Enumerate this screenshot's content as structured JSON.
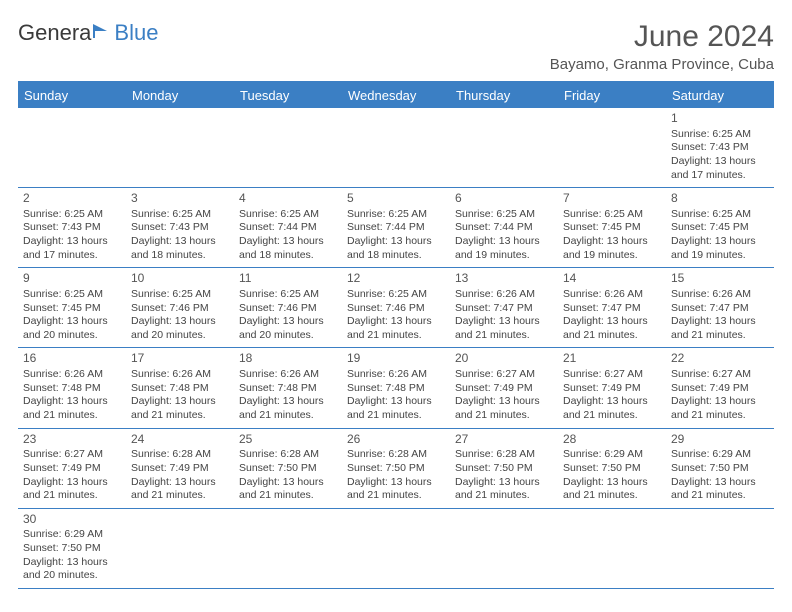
{
  "logo": {
    "text_a": "Genera",
    "text_b": "Blue"
  },
  "title": "June 2024",
  "location": "Bayamo, Granma Province, Cuba",
  "colors": {
    "brand": "#3b7fc4",
    "text": "#444444",
    "heading": "#555555"
  },
  "weekdays": [
    "Sunday",
    "Monday",
    "Tuesday",
    "Wednesday",
    "Thursday",
    "Friday",
    "Saturday"
  ],
  "weeks": [
    [
      null,
      null,
      null,
      null,
      null,
      null,
      {
        "d": "1",
        "sr": "6:25 AM",
        "ss": "7:43 PM",
        "dl": "13 hours",
        "dl2": "and 17 minutes."
      }
    ],
    [
      {
        "d": "2",
        "sr": "6:25 AM",
        "ss": "7:43 PM",
        "dl": "13 hours",
        "dl2": "and 17 minutes."
      },
      {
        "d": "3",
        "sr": "6:25 AM",
        "ss": "7:43 PM",
        "dl": "13 hours",
        "dl2": "and 18 minutes."
      },
      {
        "d": "4",
        "sr": "6:25 AM",
        "ss": "7:44 PM",
        "dl": "13 hours",
        "dl2": "and 18 minutes."
      },
      {
        "d": "5",
        "sr": "6:25 AM",
        "ss": "7:44 PM",
        "dl": "13 hours",
        "dl2": "and 18 minutes."
      },
      {
        "d": "6",
        "sr": "6:25 AM",
        "ss": "7:44 PM",
        "dl": "13 hours",
        "dl2": "and 19 minutes."
      },
      {
        "d": "7",
        "sr": "6:25 AM",
        "ss": "7:45 PM",
        "dl": "13 hours",
        "dl2": "and 19 minutes."
      },
      {
        "d": "8",
        "sr": "6:25 AM",
        "ss": "7:45 PM",
        "dl": "13 hours",
        "dl2": "and 19 minutes."
      }
    ],
    [
      {
        "d": "9",
        "sr": "6:25 AM",
        "ss": "7:45 PM",
        "dl": "13 hours",
        "dl2": "and 20 minutes."
      },
      {
        "d": "10",
        "sr": "6:25 AM",
        "ss": "7:46 PM",
        "dl": "13 hours",
        "dl2": "and 20 minutes."
      },
      {
        "d": "11",
        "sr": "6:25 AM",
        "ss": "7:46 PM",
        "dl": "13 hours",
        "dl2": "and 20 minutes."
      },
      {
        "d": "12",
        "sr": "6:25 AM",
        "ss": "7:46 PM",
        "dl": "13 hours",
        "dl2": "and 21 minutes."
      },
      {
        "d": "13",
        "sr": "6:26 AM",
        "ss": "7:47 PM",
        "dl": "13 hours",
        "dl2": "and 21 minutes."
      },
      {
        "d": "14",
        "sr": "6:26 AM",
        "ss": "7:47 PM",
        "dl": "13 hours",
        "dl2": "and 21 minutes."
      },
      {
        "d": "15",
        "sr": "6:26 AM",
        "ss": "7:47 PM",
        "dl": "13 hours",
        "dl2": "and 21 minutes."
      }
    ],
    [
      {
        "d": "16",
        "sr": "6:26 AM",
        "ss": "7:48 PM",
        "dl": "13 hours",
        "dl2": "and 21 minutes."
      },
      {
        "d": "17",
        "sr": "6:26 AM",
        "ss": "7:48 PM",
        "dl": "13 hours",
        "dl2": "and 21 minutes."
      },
      {
        "d": "18",
        "sr": "6:26 AM",
        "ss": "7:48 PM",
        "dl": "13 hours",
        "dl2": "and 21 minutes."
      },
      {
        "d": "19",
        "sr": "6:26 AM",
        "ss": "7:48 PM",
        "dl": "13 hours",
        "dl2": "and 21 minutes."
      },
      {
        "d": "20",
        "sr": "6:27 AM",
        "ss": "7:49 PM",
        "dl": "13 hours",
        "dl2": "and 21 minutes."
      },
      {
        "d": "21",
        "sr": "6:27 AM",
        "ss": "7:49 PM",
        "dl": "13 hours",
        "dl2": "and 21 minutes."
      },
      {
        "d": "22",
        "sr": "6:27 AM",
        "ss": "7:49 PM",
        "dl": "13 hours",
        "dl2": "and 21 minutes."
      }
    ],
    [
      {
        "d": "23",
        "sr": "6:27 AM",
        "ss": "7:49 PM",
        "dl": "13 hours",
        "dl2": "and 21 minutes."
      },
      {
        "d": "24",
        "sr": "6:28 AM",
        "ss": "7:49 PM",
        "dl": "13 hours",
        "dl2": "and 21 minutes."
      },
      {
        "d": "25",
        "sr": "6:28 AM",
        "ss": "7:50 PM",
        "dl": "13 hours",
        "dl2": "and 21 minutes."
      },
      {
        "d": "26",
        "sr": "6:28 AM",
        "ss": "7:50 PM",
        "dl": "13 hours",
        "dl2": "and 21 minutes."
      },
      {
        "d": "27",
        "sr": "6:28 AM",
        "ss": "7:50 PM",
        "dl": "13 hours",
        "dl2": "and 21 minutes."
      },
      {
        "d": "28",
        "sr": "6:29 AM",
        "ss": "7:50 PM",
        "dl": "13 hours",
        "dl2": "and 21 minutes."
      },
      {
        "d": "29",
        "sr": "6:29 AM",
        "ss": "7:50 PM",
        "dl": "13 hours",
        "dl2": "and 21 minutes."
      }
    ],
    [
      {
        "d": "30",
        "sr": "6:29 AM",
        "ss": "7:50 PM",
        "dl": "13 hours",
        "dl2": "and 20 minutes."
      },
      null,
      null,
      null,
      null,
      null,
      null
    ]
  ],
  "labels": {
    "sunrise": "Sunrise:",
    "sunset": "Sunset:",
    "daylight": "Daylight:"
  }
}
